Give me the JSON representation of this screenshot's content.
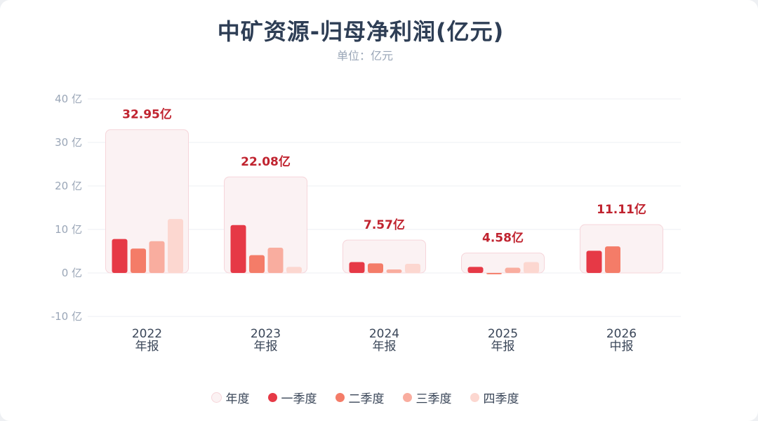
{
  "chart_data": {
    "type": "bar",
    "title": "中矿资源-归母净利润(亿元)",
    "subtitle": "单位：亿元",
    "y_unit": "亿",
    "ylim": [
      -10,
      40
    ],
    "yticks": [
      40,
      30,
      20,
      10,
      0,
      -10
    ],
    "grid": true,
    "legend_position": "bottom",
    "categories": [
      {
        "year": "2022",
        "period": "年报"
      },
      {
        "year": "2023",
        "period": "年报"
      },
      {
        "year": "2024",
        "period": "年报"
      },
      {
        "year": "2025",
        "period": "年报"
      },
      {
        "year": "2026",
        "period": "中报"
      }
    ],
    "annual": {
      "name": "年度",
      "values": [
        32.95,
        22.08,
        7.57,
        4.58,
        11.11
      ],
      "labels": [
        "32.95亿",
        "22.08亿",
        "7.57亿",
        "4.58亿",
        "11.11亿"
      ]
    },
    "series": [
      {
        "name": "一季度",
        "values": [
          7.8,
          11.0,
          2.5,
          1.4,
          5.1
        ]
      },
      {
        "name": "二季度",
        "values": [
          5.6,
          4.1,
          2.2,
          -0.3,
          6.1
        ]
      },
      {
        "name": "三季度",
        "values": [
          7.3,
          5.8,
          0.8,
          1.2,
          null
        ]
      },
      {
        "name": "四季度",
        "values": [
          12.4,
          1.4,
          2.1,
          2.5,
          null
        ]
      }
    ]
  },
  "colors": {
    "annual_fill": "#fbf2f3",
    "annual_stroke": "#f6d5da",
    "annual_label": "#c0232f",
    "series": [
      "#e63946",
      "#f47c68",
      "#f9ad9f",
      "#fcd7d0"
    ],
    "grid": "#eceff3",
    "axis_text": "#9aa6b7",
    "category_text": "#3a4658"
  },
  "legend": [
    "年度",
    "一季度",
    "二季度",
    "三季度",
    "四季度"
  ]
}
